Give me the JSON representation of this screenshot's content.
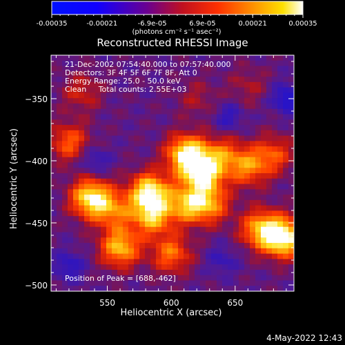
{
  "chart_data": {
    "type": "heatmap",
    "title": "Reconstructed RHESSI Image",
    "xlabel": "Heliocentric X (arcsec)",
    "ylabel": "Heliocentric Y (arcsec)",
    "xlim": [
      506,
      696
    ],
    "ylim": [
      -505,
      -315
    ],
    "x_ticks": [
      550,
      600,
      650
    ],
    "y_ticks": [
      -350,
      -400,
      -450,
      -500
    ],
    "colorbar": {
      "colormap": "blue-purple-red-yellow-white",
      "range": [
        -0.00035,
        0.00035
      ],
      "tick_labels": [
        "-0.00035",
        "-0.00021",
        "-6.9e-05",
        "6.9e-05",
        "0.00021",
        "0.00035"
      ],
      "unit": "(photons cm⁻² s⁻¹ asec⁻²)"
    },
    "info_lines": [
      "21-Dec-2002 07:54:40.000 to 07:57:40.000",
      "Detectors: 3F 4F 5F 6F 7F 8F, Att 0",
      "Energy Range: 25.0 - 50.0 keV",
      "Clean     Total counts: 2.55E+03"
    ],
    "peak_label": "Position of Peak = [688,-462]",
    "peak": [
      688,
      -462
    ],
    "bright_blobs": [
      {
        "x": 612,
        "y": -395,
        "v": 0.95
      },
      {
        "x": 625,
        "y": -410,
        "v": 0.85
      },
      {
        "x": 583,
        "y": -425,
        "v": 0.9
      },
      {
        "x": 585,
        "y": -445,
        "v": 0.7
      },
      {
        "x": 537,
        "y": -430,
        "v": 0.9
      },
      {
        "x": 555,
        "y": -440,
        "v": 0.5
      },
      {
        "x": 560,
        "y": -470,
        "v": 0.75
      },
      {
        "x": 612,
        "y": -435,
        "v": 0.65
      },
      {
        "x": 630,
        "y": -435,
        "v": 0.6
      },
      {
        "x": 600,
        "y": -475,
        "v": 0.55
      },
      {
        "x": 688,
        "y": -462,
        "v": 1.0
      },
      {
        "x": 670,
        "y": -455,
        "v": 0.7
      },
      {
        "x": 660,
        "y": -405,
        "v": 0.55
      },
      {
        "x": 680,
        "y": -395,
        "v": 0.45
      },
      {
        "x": 640,
        "y": -395,
        "v": 0.45
      },
      {
        "x": 520,
        "y": -385,
        "v": 0.5
      },
      {
        "x": 530,
        "y": -345,
        "v": 0.3
      },
      {
        "x": 620,
        "y": -350,
        "v": 0.2
      },
      {
        "x": 660,
        "y": -340,
        "v": 0.2
      }
    ],
    "dark_blobs": [
      {
        "x": 690,
        "y": -350,
        "v": 0.9
      },
      {
        "x": 645,
        "y": -365,
        "v": 0.6
      },
      {
        "x": 540,
        "y": -400,
        "v": 0.6
      },
      {
        "x": 520,
        "y": -485,
        "v": 0.7
      },
      {
        "x": 640,
        "y": -480,
        "v": 0.5
      }
    ]
  },
  "timestamp": "4-May-2022 12:43"
}
